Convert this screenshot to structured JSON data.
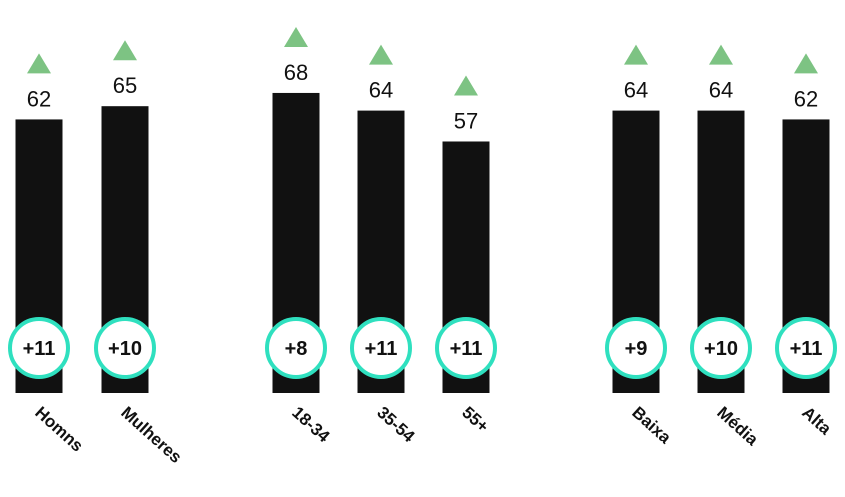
{
  "chart_data": {
    "type": "bar",
    "ylim": [
      0,
      80
    ],
    "categories": [
      "Homns",
      "Mulheres",
      "18-34",
      "35-54",
      "55+",
      "Baixa",
      "Média",
      "Alta"
    ],
    "groups": [
      [
        "Homns",
        "Mulheres"
      ],
      [
        "18-34",
        "35-54",
        "55+"
      ],
      [
        "Baixa",
        "Média",
        "Alta"
      ]
    ],
    "values": [
      62,
      65,
      68,
      64,
      57,
      64,
      64,
      62
    ],
    "value_labels": [
      "62",
      "65",
      "68",
      "64",
      "57",
      "64",
      "64",
      "62"
    ],
    "changes": [
      "+11",
      "+10",
      "+8",
      "+11",
      "+11",
      "+9",
      "+10",
      "+11"
    ],
    "trend": [
      "up",
      "up",
      "up",
      "up",
      "up",
      "up",
      "up",
      "up"
    ],
    "colors": {
      "bar": "#111111",
      "badge_border": "#2fe0bf",
      "badge_fill": "#ffffff",
      "trend_up": "#7dc383"
    }
  }
}
